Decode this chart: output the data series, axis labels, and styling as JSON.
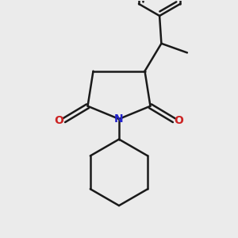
{
  "background_color": "#ebebeb",
  "line_color": "#1a1a1a",
  "N_color": "#2222cc",
  "O_color": "#cc2222",
  "line_width": 1.8,
  "figsize": [
    3.0,
    3.0
  ],
  "dpi": 100,
  "xlim": [
    -2.2,
    2.2
  ],
  "ylim": [
    -3.2,
    3.2
  ]
}
